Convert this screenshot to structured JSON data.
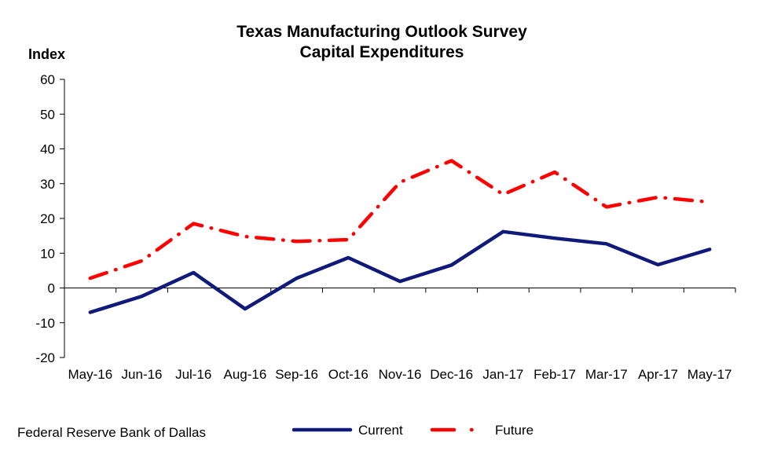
{
  "chart_data": {
    "type": "line",
    "title": "Texas Manufacturing Outlook Survey",
    "subtitle": "Capital Expenditures",
    "ylabel": "Index",
    "xlabel": "",
    "ylim": [
      -20,
      60
    ],
    "yticks": [
      -20,
      -10,
      0,
      10,
      20,
      30,
      40,
      50,
      60
    ],
    "grid": false,
    "legend_position": "bottom",
    "categories": [
      "May-16",
      "Jun-16",
      "Jul-16",
      "Aug-16",
      "Sep-16",
      "Oct-16",
      "Nov-16",
      "Dec-16",
      "Jan-17",
      "Feb-17",
      "Mar-17",
      "Apr-17",
      "May-17"
    ],
    "series": [
      {
        "name": "Current",
        "color": "#0f1a7a",
        "style": "solid",
        "values": [
          -7.0,
          -2.4,
          4.4,
          -6.0,
          2.8,
          8.7,
          1.9,
          6.6,
          16.2,
          14.3,
          12.7,
          6.7,
          11.1
        ]
      },
      {
        "name": "Future",
        "color": "#ff0000",
        "style": "dash-dot",
        "values": [
          2.8,
          7.8,
          18.5,
          14.8,
          13.4,
          13.9,
          30.4,
          36.6,
          26.9,
          33.3,
          23.3,
          26.1,
          24.7
        ]
      }
    ]
  },
  "source": "Federal Reserve Bank of Dallas"
}
